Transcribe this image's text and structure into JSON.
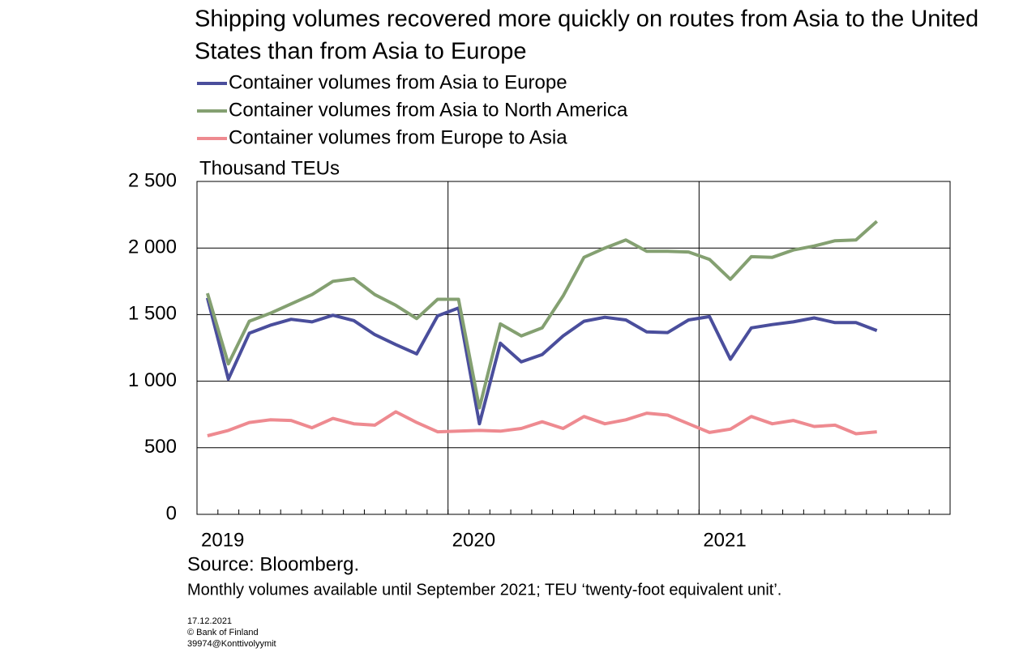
{
  "chart_data": {
    "type": "line",
    "title": "Shipping volumes recovered more quickly on routes from Asia to the United States than from Asia to Europe",
    "y_label": "Thousand TEUs",
    "source": "Source: Bloomberg.",
    "note": "Monthly volumes available until September 2021; TEU ‘twenty-foot equivalent unit’.",
    "footer": [
      "17.12.2021",
      "© Bank of Finland",
      "39974@Konttivolyymit"
    ],
    "categories": [
      "2019",
      null,
      null,
      null,
      null,
      null,
      null,
      null,
      null,
      null,
      null,
      null,
      "2020",
      null,
      null,
      null,
      null,
      null,
      null,
      null,
      null,
      null,
      null,
      null,
      "2021",
      null,
      null,
      null,
      null,
      null,
      null,
      null,
      null,
      null,
      null,
      null
    ],
    "series": [
      {
        "name": "Container volumes from Asia to Europe",
        "color": "#4a4e9c",
        "values": [
          1625,
          1015,
          1360,
          1420,
          1465,
          1445,
          1495,
          1455,
          1350,
          1275,
          1205,
          1490,
          1550,
          680,
          1285,
          1145,
          1200,
          1340,
          1450,
          1480,
          1460,
          1370,
          1365,
          1460,
          1485,
          1165,
          1400,
          1425,
          1445,
          1475,
          1440,
          1440,
          1380,
          null,
          null,
          null
        ]
      },
      {
        "name": "Container volumes from Asia to North America",
        "color": "#84a071",
        "values": [
          1660,
          1130,
          1450,
          1510,
          1580,
          1650,
          1750,
          1770,
          1650,
          1570,
          1470,
          1615,
          1615,
          800,
          1430,
          1340,
          1400,
          1640,
          1930,
          2000,
          2060,
          1975,
          1975,
          1970,
          1915,
          1765,
          1935,
          1930,
          1985,
          2015,
          2055,
          2060,
          2200,
          null,
          null,
          null
        ]
      },
      {
        "name": "Container volumes from Europe to Asia",
        "color": "#ee8a90",
        "values": [
          590,
          630,
          690,
          710,
          705,
          650,
          720,
          680,
          670,
          770,
          690,
          620,
          625,
          630,
          625,
          645,
          695,
          645,
          735,
          680,
          710,
          760,
          745,
          680,
          615,
          640,
          735,
          680,
          705,
          660,
          670,
          605,
          620,
          null,
          null,
          null
        ]
      }
    ],
    "ylim": [
      0,
      2500
    ],
    "yticks": [
      0,
      500,
      {
        "value": 1000,
        "label": "1 000"
      },
      {
        "value": 1500,
        "label": "1 500"
      },
      {
        "value": 2000,
        "label": "2 000"
      },
      {
        "value": 2500,
        "label": "2 500"
      }
    ],
    "grid": true
  }
}
